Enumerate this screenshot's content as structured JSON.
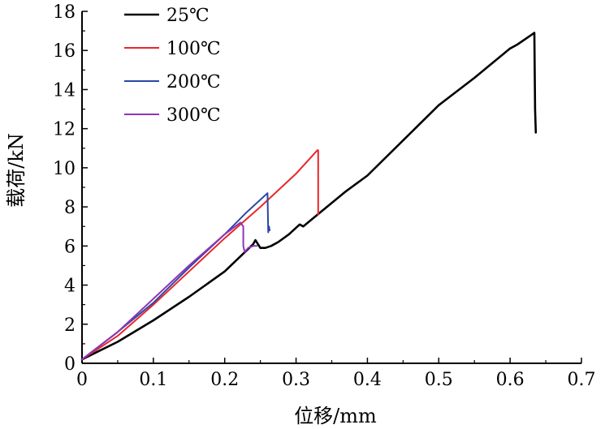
{
  "chart_data": {
    "type": "line",
    "title": "",
    "xlabel": "位移/mm",
    "ylabel": "载荷/kN",
    "xlim": [
      0,
      0.7
    ],
    "ylim": [
      0,
      18
    ],
    "x_ticks": [
      0,
      0.1,
      0.2,
      0.3,
      0.4,
      0.5,
      0.6,
      0.7
    ],
    "x_tick_labels": [
      "0",
      "0.1",
      "0.2",
      "0.3",
      "0.4",
      "0.5",
      "0.6",
      "0.7"
    ],
    "y_ticks": [
      0,
      2,
      4,
      6,
      8,
      10,
      12,
      14,
      16,
      18
    ],
    "y_tick_labels": [
      "0",
      "2",
      "4",
      "6",
      "8",
      "10",
      "12",
      "14",
      "16",
      "18"
    ],
    "legend_placement": "top-left",
    "grid": false,
    "series": [
      {
        "name": "25℃",
        "color": "#000000",
        "x": [
          0,
          0.05,
          0.1,
          0.15,
          0.2,
          0.24,
          0.243,
          0.25,
          0.257,
          0.265,
          0.275,
          0.29,
          0.305,
          0.31,
          0.32,
          0.34,
          0.37,
          0.4,
          0.45,
          0.5,
          0.55,
          0.6,
          0.61,
          0.63,
          0.634,
          0.635,
          0.636
        ],
        "y": [
          0.2,
          1.1,
          2.2,
          3.4,
          4.7,
          6.1,
          6.3,
          5.9,
          5.9,
          6.0,
          6.2,
          6.6,
          7.1,
          7.0,
          7.3,
          7.9,
          8.8,
          9.6,
          11.4,
          13.2,
          14.6,
          16.1,
          16.3,
          16.8,
          16.9,
          13.0,
          11.8
        ]
      },
      {
        "name": "100℃",
        "color": "#e8262a",
        "x": [
          0,
          0.05,
          0.1,
          0.15,
          0.2,
          0.25,
          0.3,
          0.33,
          0.331,
          0.331
        ],
        "y": [
          0.2,
          1.4,
          3.0,
          4.7,
          6.4,
          8.0,
          9.7,
          10.9,
          10.9,
          7.6
        ]
      },
      {
        "name": "200℃",
        "color": "#2a47a4",
        "x": [
          0,
          0.05,
          0.1,
          0.15,
          0.2,
          0.23,
          0.26,
          0.261,
          0.262,
          0.263
        ],
        "y": [
          0.2,
          1.6,
          3.1,
          4.9,
          6.6,
          7.7,
          8.7,
          6.7,
          7.0,
          6.8
        ]
      },
      {
        "name": "300℃",
        "color": "#8e35b5",
        "x": [
          0,
          0.05,
          0.1,
          0.15,
          0.2,
          0.222,
          0.226,
          0.226,
          0.228,
          0.233,
          0.24,
          0.245
        ],
        "y": [
          0.2,
          1.6,
          3.3,
          5.0,
          6.6,
          7.2,
          7.0,
          6.0,
          5.7,
          5.9,
          6.0,
          6.0
        ]
      }
    ]
  }
}
